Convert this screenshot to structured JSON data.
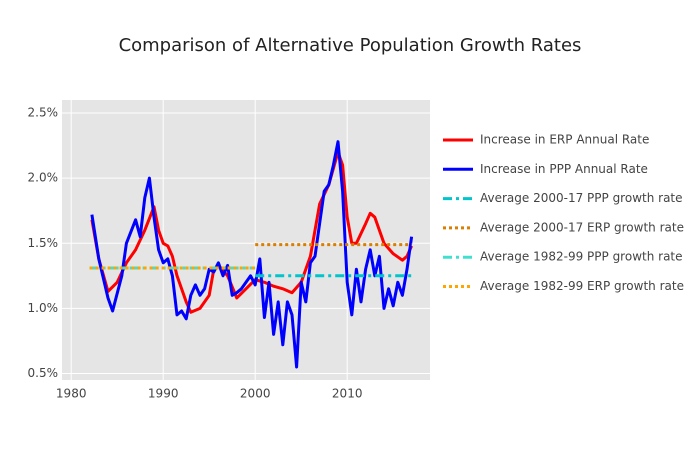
{
  "chart_data": {
    "type": "line",
    "title": "Comparison of Alternative Population Growth Rates",
    "xlim": [
      1979,
      2019
    ],
    "xticks": [
      1980,
      1990,
      2000,
      2010
    ],
    "ylim": [
      0.45,
      2.6
    ],
    "yticks": [
      {
        "value": 0.5,
        "label": "0.5%"
      },
      {
        "value": 1.0,
        "label": "1.0%"
      },
      {
        "value": 1.5,
        "label": "1.5%"
      },
      {
        "value": 2.0,
        "label": "2.0%"
      },
      {
        "value": 2.5,
        "label": "2.5%"
      }
    ],
    "grid": true,
    "legend": "right",
    "series": [
      {
        "name": "Increase in ERP Annual Rate",
        "color": "#ff0000",
        "dash": "solid",
        "x": [
          1982.25,
          1983,
          1984,
          1985,
          1986,
          1987,
          1988,
          1989,
          1989.5,
          1990,
          1990.5,
          1991,
          1991.5,
          1992,
          1992.5,
          1993,
          1994,
          1995,
          1995.5,
          1996,
          1997,
          1998,
          1999,
          2000,
          2001,
          2002,
          2003,
          2004,
          2005,
          2006,
          2007,
          2008,
          2009,
          2009.5,
          2010,
          2010.5,
          2011,
          2012,
          2012.5,
          2013,
          2014,
          2015,
          2016,
          2016.5,
          2017
        ],
        "values": [
          1.68,
          1.38,
          1.13,
          1.2,
          1.35,
          1.45,
          1.6,
          1.78,
          1.6,
          1.5,
          1.48,
          1.4,
          1.25,
          1.15,
          1.05,
          0.97,
          1.0,
          1.1,
          1.3,
          1.33,
          1.25,
          1.08,
          1.15,
          1.22,
          1.2,
          1.17,
          1.15,
          1.12,
          1.2,
          1.4,
          1.8,
          1.95,
          2.2,
          2.1,
          1.7,
          1.5,
          1.5,
          1.65,
          1.73,
          1.7,
          1.5,
          1.42,
          1.37,
          1.4,
          1.48
        ]
      },
      {
        "name": "Increase in PPP Annual Rate",
        "color": "#0000ff",
        "dash": "solid",
        "x": [
          1982.25,
          1983,
          1984,
          1984.5,
          1985.5,
          1986,
          1987,
          1987.5,
          1988,
          1988.5,
          1989,
          1989.5,
          1990,
          1990.5,
          1991,
          1991.5,
          1992,
          1992.5,
          1993,
          1993.5,
          1994,
          1994.5,
          1995,
          1995.5,
          1996,
          1996.5,
          1997,
          1997.5,
          1998,
          1998.5,
          1999,
          1999.5,
          2000,
          2000.5,
          2001,
          2001.5,
          2002,
          2002.5,
          2003,
          2003.5,
          2004,
          2004.5,
          2005,
          2005.5,
          2006,
          2006.5,
          2007,
          2007.5,
          2008,
          2008.5,
          2009,
          2009.5,
          2010,
          2010.5,
          2011,
          2011.5,
          2012,
          2012.5,
          2013,
          2013.5,
          2014,
          2014.5,
          2015,
          2015.5,
          2016,
          2016.5,
          2017
        ],
        "values": [
          1.72,
          1.38,
          1.08,
          0.98,
          1.25,
          1.5,
          1.68,
          1.55,
          1.85,
          2.0,
          1.7,
          1.45,
          1.35,
          1.38,
          1.25,
          0.95,
          0.98,
          0.92,
          1.1,
          1.18,
          1.1,
          1.15,
          1.3,
          1.28,
          1.35,
          1.25,
          1.33,
          1.1,
          1.12,
          1.15,
          1.2,
          1.25,
          1.18,
          1.38,
          0.93,
          1.2,
          0.8,
          1.05,
          0.72,
          1.05,
          0.95,
          0.55,
          1.2,
          1.05,
          1.35,
          1.4,
          1.65,
          1.9,
          1.95,
          2.1,
          2.28,
          1.9,
          1.2,
          0.95,
          1.3,
          1.05,
          1.3,
          1.45,
          1.25,
          1.4,
          1.0,
          1.15,
          1.02,
          1.2,
          1.1,
          1.3,
          1.55
        ]
      },
      {
        "name": "Average 2000-17 PPP growth rate",
        "color": "#00c5cd",
        "dash": "dashdot",
        "x": [
          2000,
          2017
        ],
        "values": [
          1.25,
          1.25
        ]
      },
      {
        "name": "Average 2000-17 ERP growth rate",
        "color": "#d97f00",
        "dash": "dot",
        "x": [
          2000,
          2017
        ],
        "values": [
          1.49,
          1.49
        ]
      },
      {
        "name": "Average 1982-99 PPP growth rate",
        "color": "#40e0d0",
        "dash": "dashdot",
        "x": [
          1982,
          2000
        ],
        "values": [
          1.31,
          1.31
        ]
      },
      {
        "name": "Average 1982-99 ERP growth rate",
        "color": "#ffa500",
        "dash": "dot",
        "x": [
          1982,
          2000
        ],
        "values": [
          1.31,
          1.31
        ]
      }
    ]
  }
}
